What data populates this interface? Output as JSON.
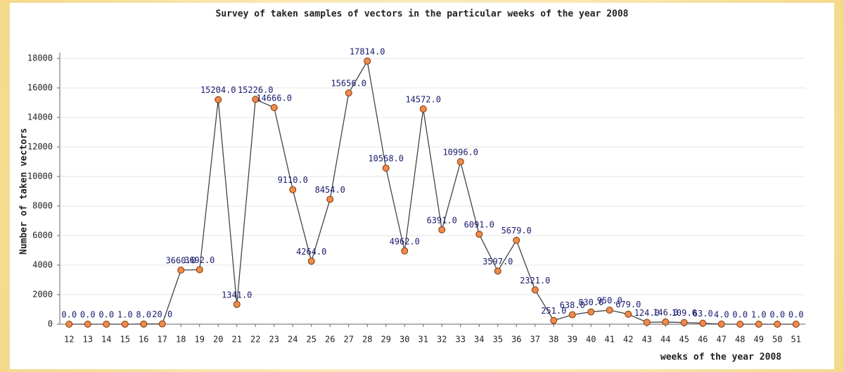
{
  "chart_data": {
    "type": "line",
    "title": "Survey of taken samples of vectors in the particular weeks of the year 2008",
    "x_label": "weeks of the year 2008",
    "y_label": "Number of taken vectors",
    "categories": [
      "12",
      "13",
      "14",
      "15",
      "16",
      "17",
      "18",
      "19",
      "20",
      "21",
      "22",
      "23",
      "24",
      "25",
      "26",
      "27",
      "28",
      "29",
      "30",
      "31",
      "32",
      "33",
      "34",
      "35",
      "36",
      "37",
      "38",
      "39",
      "40",
      "41",
      "42",
      "43",
      "44",
      "45",
      "46",
      "47",
      "48",
      "49",
      "50",
      "51"
    ],
    "series": [
      {
        "name": "vectors",
        "color": "#f08a4b",
        "values": [
          0,
          0,
          0,
          1,
          8,
          20,
          3660,
          3692,
          15204,
          1341,
          15226,
          14666,
          9110,
          4264,
          8454,
          15656,
          17814,
          10568,
          4962,
          14572,
          6391,
          10996,
          6091,
          3597,
          5679,
          2321,
          251,
          638,
          830,
          950,
          679,
          124,
          146,
          109,
          63,
          4,
          0,
          1,
          0,
          0
        ],
        "value_labels": [
          "0.0",
          "0.0",
          "0.0",
          "1.0",
          "8.0",
          "20.0",
          "3660.0",
          "3692.0",
          "15204.0",
          "1341.0",
          "15226.0",
          "14666.0",
          "9110.0",
          "4264.0",
          "8454.0",
          "15656.0",
          "17814.0",
          "10568.0",
          "4962.0",
          "14572.0",
          "6391.0",
          "10996.0",
          "6091.0",
          "3597.0",
          "5679.0",
          "2321.0",
          "251.0",
          "638.0",
          "830.0",
          "950.0",
          "679.0",
          "124.0",
          "146.0",
          "109.0",
          "63.0",
          "4.0",
          "0.0",
          "1.0",
          "0.0",
          "0.0"
        ]
      }
    ],
    "ylim": [
      0,
      18000
    ],
    "yticks": [
      0,
      2000,
      4000,
      6000,
      8000,
      10000,
      12000,
      14000,
      16000,
      18000
    ],
    "grid": true
  }
}
